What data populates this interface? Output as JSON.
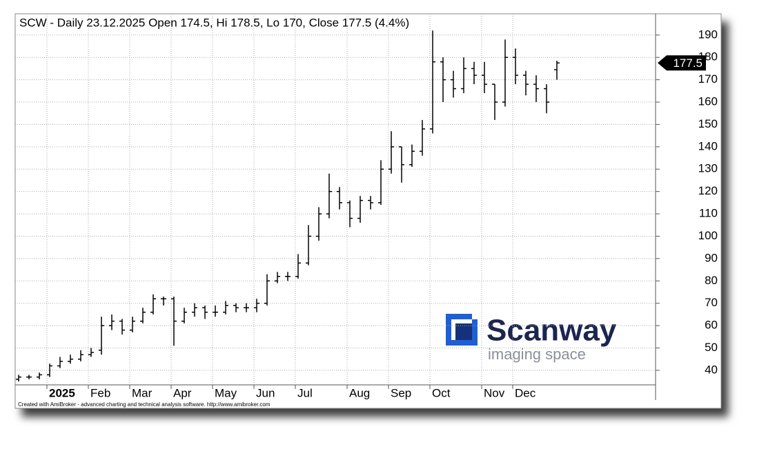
{
  "chart_data": {
    "type": "ohlc",
    "title": "SCW - Daily 23.12.2025 Open 174.5, Hi 178.5, Lo 170, Close 177.5 (4.4%)",
    "footer": "Created with AmiBroker - advanced charting and technical analysis software. http://www.amibroker.com",
    "watermark": {
      "name": "Scanway",
      "tagline": "imaging space"
    },
    "categories": [
      null,
      null,
      null,
      "2025",
      null,
      null,
      null,
      "Feb",
      null,
      null,
      null,
      "Mar",
      null,
      null,
      null,
      "Apr",
      null,
      null,
      null,
      "May",
      null,
      null,
      null,
      "Jun",
      null,
      null,
      null,
      "Jul",
      null,
      null,
      null,
      null,
      "Aug",
      null,
      null,
      null,
      "Sep",
      null,
      null,
      null,
      "Oct",
      null,
      null,
      null,
      null,
      "Nov",
      null,
      null,
      "Dec",
      null,
      null,
      null,
      null
    ],
    "open": [
      36,
      37,
      37,
      38,
      42,
      44,
      45,
      47,
      49,
      60,
      62,
      58,
      62,
      66,
      72,
      72,
      62,
      66,
      68,
      66,
      66,
      69,
      68,
      68,
      70,
      80,
      82,
      82,
      88,
      100,
      110,
      120,
      115,
      108,
      116,
      115,
      130,
      140,
      132,
      138,
      148,
      178,
      170,
      166,
      175,
      172,
      168,
      160,
      180,
      172,
      168,
      166,
      174.5
    ],
    "high": [
      38,
      38,
      39,
      43,
      46,
      47,
      49,
      50,
      64,
      65,
      63,
      64,
      68,
      74,
      73,
      73,
      68,
      70,
      69,
      69,
      71,
      70,
      70,
      72,
      83,
      84,
      84,
      92,
      105,
      113,
      128,
      122,
      116,
      118,
      118,
      134,
      147,
      140,
      141,
      152,
      192,
      180,
      174,
      180,
      178,
      178,
      168,
      188,
      184,
      174,
      172,
      168,
      178.5
    ],
    "low": [
      35,
      36,
      36,
      37,
      41,
      43,
      44,
      46,
      47,
      58,
      56,
      57,
      61,
      65,
      69,
      51,
      61,
      64,
      63,
      64,
      65,
      66,
      66,
      66,
      69,
      79,
      80,
      81,
      87,
      98,
      108,
      112,
      104,
      106,
      112,
      114,
      128,
      124,
      131,
      136,
      146,
      160,
      162,
      164,
      168,
      164,
      152,
      158,
      168,
      163,
      160,
      155,
      170
    ],
    "close": [
      37,
      37,
      38,
      42,
      44,
      45,
      47,
      48,
      60,
      62,
      58,
      62,
      66,
      72,
      72,
      62,
      66,
      68,
      66,
      66,
      69,
      68,
      68,
      70,
      80,
      82,
      82,
      88,
      100,
      110,
      120,
      115,
      108,
      116,
      115,
      130,
      140,
      132,
      138,
      148,
      178,
      170,
      166,
      175,
      172,
      168,
      160,
      180,
      172,
      168,
      166,
      160,
      177.5
    ],
    "color": "#000000",
    "ylim": [
      33.5,
      199.5
    ],
    "yticks": [
      40,
      50,
      60,
      70,
      80,
      90,
      100,
      110,
      120,
      130,
      140,
      150,
      160,
      170,
      180,
      190
    ],
    "grid": true
  }
}
